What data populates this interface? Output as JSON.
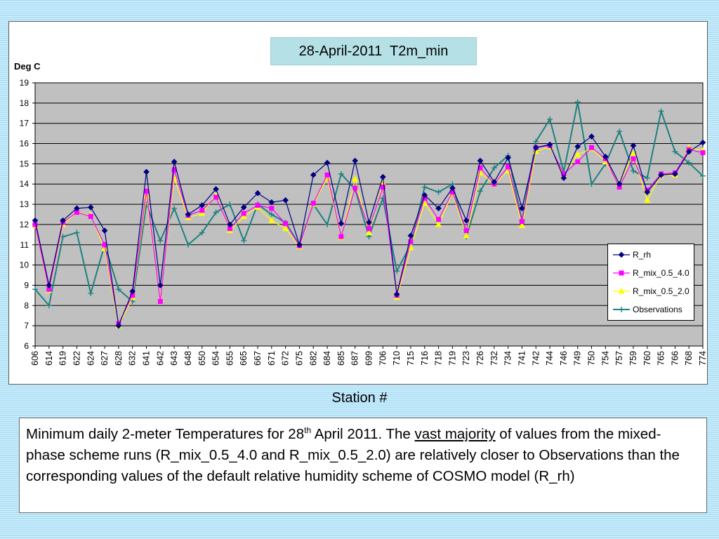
{
  "chart_data": {
    "type": "line",
    "title": "28-April-2011  T2m_min",
    "ylabel": "Deg C",
    "xlabel": "Station #",
    "ylim": [
      6,
      19
    ],
    "yticks": [
      6,
      7,
      8,
      9,
      10,
      11,
      12,
      13,
      14,
      15,
      16,
      17,
      18,
      19
    ],
    "grid": true,
    "legend_position": "lower-right",
    "categories": [
      "606",
      "614",
      "619",
      "622",
      "624",
      "627",
      "628",
      "632",
      "641",
      "642",
      "643",
      "648",
      "650",
      "654",
      "655",
      "665",
      "667",
      "671",
      "672",
      "675",
      "682",
      "684",
      "685",
      "687",
      "699",
      "706",
      "710",
      "715",
      "716",
      "718",
      "719",
      "723",
      "726",
      "732",
      "734",
      "741",
      "742",
      "744",
      "746",
      "749",
      "750",
      "754",
      "757",
      "759",
      "760",
      "765",
      "766",
      "768",
      "774"
    ],
    "series": [
      {
        "name": "R_rh",
        "color": "#000080",
        "marker": "diamond",
        "values": [
          12.2,
          9.0,
          12.2,
          12.8,
          12.85,
          11.7,
          7.0,
          8.7,
          14.6,
          9.0,
          15.1,
          12.5,
          12.95,
          13.75,
          12.0,
          12.85,
          13.55,
          13.1,
          13.2,
          11.0,
          14.45,
          15.05,
          12.05,
          15.15,
          12.1,
          14.35,
          8.55,
          11.45,
          13.45,
          12.8,
          13.8,
          12.2,
          15.15,
          14.1,
          15.3,
          12.8,
          15.8,
          15.95,
          14.3,
          15.85,
          16.35,
          15.35,
          14.0,
          15.9,
          13.6,
          14.45,
          14.5,
          15.6,
          16.05
        ]
      },
      {
        "name": "R_mix_0.5_4.0",
        "color": "#ff00ff",
        "marker": "square",
        "values": [
          12.0,
          8.8,
          12.1,
          12.6,
          12.4,
          11.0,
          7.1,
          8.5,
          13.65,
          8.2,
          14.7,
          12.45,
          12.7,
          13.35,
          11.8,
          12.55,
          12.95,
          12.8,
          12.05,
          10.95,
          13.05,
          14.45,
          11.4,
          13.8,
          11.8,
          13.85,
          8.5,
          11.15,
          13.3,
          12.25,
          13.6,
          11.7,
          14.8,
          14.0,
          14.85,
          12.15,
          15.8,
          15.9,
          14.5,
          15.1,
          15.8,
          15.25,
          13.85,
          15.25,
          13.7,
          14.5,
          14.55,
          15.7,
          15.55
        ]
      },
      {
        "name": "R_mix_0.5_2.0",
        "color": "#ffff00",
        "marker": "triangle",
        "values": [
          11.95,
          8.75,
          12.0,
          12.6,
          12.45,
          10.8,
          7.0,
          8.4,
          13.4,
          8.3,
          14.3,
          12.35,
          12.55,
          13.45,
          11.7,
          12.4,
          12.85,
          12.2,
          11.8,
          10.9,
          13.0,
          14.3,
          11.35,
          14.25,
          11.6,
          14.05,
          8.4,
          10.85,
          13.05,
          12.0,
          13.55,
          11.45,
          14.55,
          14.0,
          14.65,
          11.95,
          15.6,
          15.85,
          14.45,
          15.45,
          15.75,
          15.1,
          14.0,
          15.5,
          13.2,
          14.45,
          14.45,
          15.8,
          15.65
        ]
      },
      {
        "name": "Observations",
        "color": "#1f8080",
        "marker": "plus",
        "values": [
          8.8,
          8.0,
          11.4,
          11.6,
          8.6,
          11.0,
          8.8,
          8.2,
          13.0,
          11.2,
          12.8,
          11.0,
          11.6,
          12.6,
          13.0,
          11.2,
          13.0,
          12.5,
          12.1,
          11.0,
          13.0,
          12.0,
          14.5,
          13.75,
          11.4,
          13.3,
          9.7,
          11.0,
          13.85,
          13.6,
          14.0,
          11.4,
          13.65,
          14.8,
          15.4,
          12.2,
          16.1,
          17.2,
          14.6,
          18.05,
          14.0,
          15.0,
          16.6,
          14.65,
          14.3,
          17.6,
          15.6,
          15.05,
          14.4
        ]
      }
    ]
  },
  "caption": {
    "part1": "Minimum daily 2-meter Temperatures for 28",
    "sup": "th",
    "part2": " April 2011. The ",
    "underlined": "vast majority",
    "part3": " of values from the mixed- phase scheme runs (R_mix_0.5_4.0 and R_mix_0.5_2.0) are relatively closer to Observations than the corresponding values of the default relative humidity scheme of COSMO model (R_rh)"
  }
}
